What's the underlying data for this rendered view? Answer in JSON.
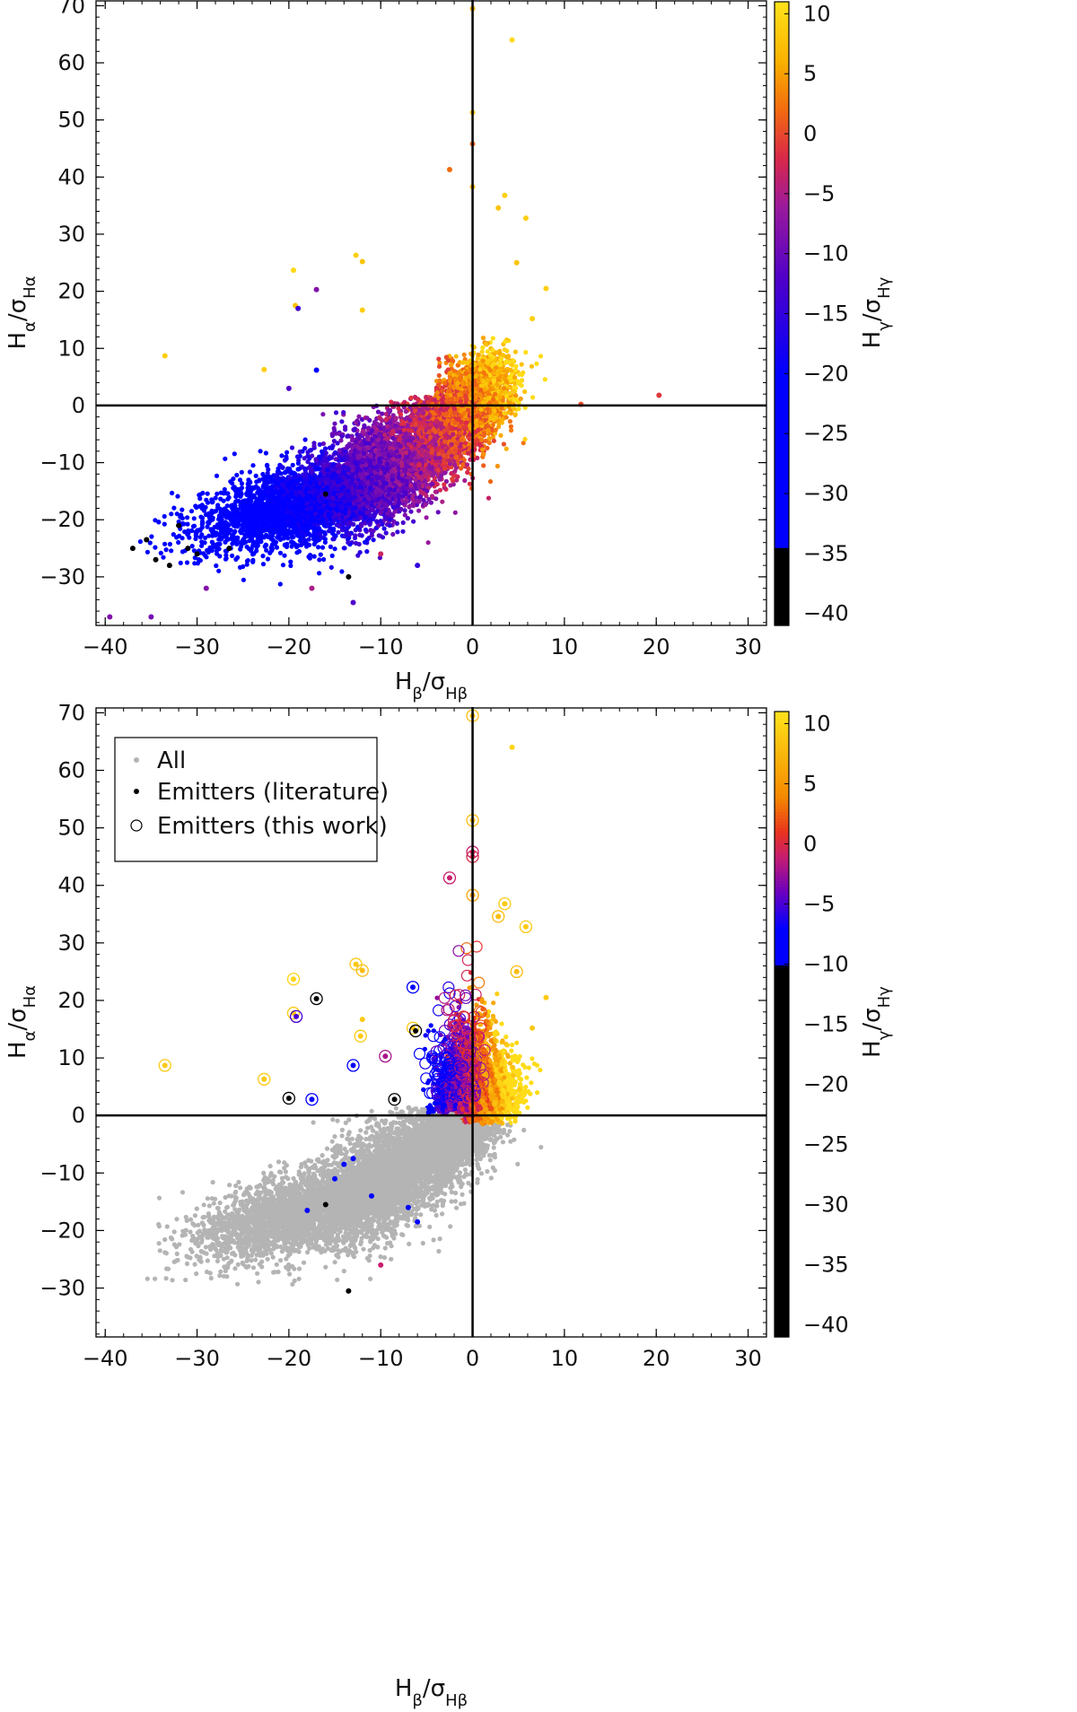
{
  "chart_data": [
    {
      "type": "scatter",
      "title": "",
      "xlabel": "H_β/σ_Hβ",
      "ylabel": "H_α/σ_Hα",
      "colorbar_label": "H_γ/σ_Hγ",
      "xlim": [
        -41,
        32
      ],
      "ylim": [
        -38.5,
        71
      ],
      "xticks": [
        "−40",
        "−30",
        "−20",
        "−10",
        "0",
        "10",
        "20",
        "30"
      ],
      "xtick_values": [
        -40,
        -30,
        -20,
        -10,
        0,
        10,
        20,
        30
      ],
      "yticks": [
        "−30",
        "−20",
        "−10",
        "0",
        "10",
        "20",
        "30",
        "40",
        "50",
        "60",
        "70"
      ],
      "ytick_values": [
        -30,
        -20,
        -10,
        0,
        10,
        20,
        30,
        40,
        50,
        60,
        70
      ],
      "colorbar": {
        "range": [
          -41,
          11
        ],
        "ticks": [
          "10",
          "5",
          "0",
          "−5",
          "−10",
          "−15",
          "−20",
          "−25",
          "−30",
          "−35",
          "−40"
        ],
        "tick_values": [
          10,
          5,
          0,
          -5,
          -10,
          -15,
          -20,
          -25,
          -30,
          -35,
          -40
        ],
        "stops": [
          {
            "value": -41,
            "color": "#000000"
          },
          {
            "value": -34.5,
            "color": "#000000"
          },
          {
            "value": -34.4,
            "color": "#0000ff"
          },
          {
            "value": -20,
            "color": "#0000ff"
          },
          {
            "value": -12,
            "color": "#5000c8"
          },
          {
            "value": -6,
            "color": "#9b1a9b"
          },
          {
            "value": -2,
            "color": "#d9284a"
          },
          {
            "value": 2,
            "color": "#f26a10"
          },
          {
            "value": 6,
            "color": "#f9b000"
          },
          {
            "value": 11,
            "color": "#ffe21a"
          }
        ]
      },
      "reference_lines": {
        "x": 0,
        "y": 0,
        "color": "#000000"
      },
      "points": [
        {
          "x": -39.5,
          "y": -37,
          "c": -8
        },
        {
          "x": -37,
          "y": -25,
          "c": -38
        },
        {
          "x": -35.5,
          "y": -23.5,
          "c": -37
        },
        {
          "x": -35,
          "y": -37,
          "c": -9
        },
        {
          "x": -34.5,
          "y": -27,
          "c": -36
        },
        {
          "x": -33.5,
          "y": 8.7,
          "c": 9
        },
        {
          "x": -33,
          "y": -28,
          "c": -37
        },
        {
          "x": -32,
          "y": -21,
          "c": -36
        },
        {
          "x": -31,
          "y": -25,
          "c": -38
        },
        {
          "x": -30,
          "y": -26,
          "c": -35
        },
        {
          "x": -29,
          "y": -32,
          "c": -8
        },
        {
          "x": -26.5,
          "y": -25,
          "c": -37
        },
        {
          "x": -22.7,
          "y": 6.3,
          "c": 9
        },
        {
          "x": -20,
          "y": 3,
          "c": -12
        },
        {
          "x": -19.5,
          "y": 23.7,
          "c": 10
        },
        {
          "x": -19.3,
          "y": 17.5,
          "c": 8
        },
        {
          "x": -19,
          "y": 17,
          "c": -14
        },
        {
          "x": -17.5,
          "y": -32,
          "c": -5
        },
        {
          "x": -17,
          "y": 20.3,
          "c": -8
        },
        {
          "x": -17,
          "y": 6.2,
          "c": -22
        },
        {
          "x": -16,
          "y": -15.5,
          "c": -38
        },
        {
          "x": -13.5,
          "y": -30,
          "c": -40
        },
        {
          "x": -13,
          "y": -34.5,
          "c": -12
        },
        {
          "x": -12.7,
          "y": 26.3,
          "c": 9
        },
        {
          "x": -12,
          "y": 25.2,
          "c": 8
        },
        {
          "x": -12,
          "y": 16.7,
          "c": 9
        },
        {
          "x": -10,
          "y": -26,
          "c": -3
        },
        {
          "x": -6,
          "y": -28,
          "c": -15
        },
        {
          "x": -2.5,
          "y": 41.3,
          "c": 2
        },
        {
          "x": 0,
          "y": 69.5,
          "c": 6
        },
        {
          "x": 0,
          "y": 51.3,
          "c": 8
        },
        {
          "x": 0,
          "y": 45.8,
          "c": 2
        },
        {
          "x": 0,
          "y": 38.3,
          "c": 7
        },
        {
          "x": 3.5,
          "y": 36.8,
          "c": 9
        },
        {
          "x": 4.3,
          "y": 64,
          "c": 10
        },
        {
          "x": 2.8,
          "y": 34.6,
          "c": 8
        },
        {
          "x": 5.8,
          "y": 32.8,
          "c": 9
        },
        {
          "x": 4.8,
          "y": 25,
          "c": 8
        },
        {
          "x": 8,
          "y": 20.5,
          "c": 9
        },
        {
          "x": 6.5,
          "y": 15.2,
          "c": 9
        },
        {
          "x": 11.8,
          "y": 0.2,
          "c": 0
        },
        {
          "x": 20.3,
          "y": 1.8,
          "c": -1
        }
      ]
    },
    {
      "type": "scatter",
      "title": "",
      "xlabel": "H_β/σ_Hβ",
      "ylabel": "H_α/σ_Hα",
      "colorbar_label": "H_γ/σ_Hγ",
      "xlim": [
        -41,
        32
      ],
      "ylim": [
        -38.5,
        71
      ],
      "xticks": [
        "−40",
        "−30",
        "−20",
        "−10",
        "0",
        "10",
        "20",
        "30"
      ],
      "xtick_values": [
        -40,
        -30,
        -20,
        -10,
        0,
        10,
        20,
        30
      ],
      "yticks": [
        "−30",
        "−20",
        "−10",
        "0",
        "10",
        "20",
        "30",
        "40",
        "50",
        "60",
        "70"
      ],
      "ytick_values": [
        -30,
        -20,
        -10,
        0,
        10,
        20,
        30,
        40,
        50,
        60,
        70
      ],
      "colorbar": {
        "range": [
          -41,
          11
        ],
        "ticks": [
          "10",
          "5",
          "0",
          "−5",
          "−10",
          "−15",
          "−20",
          "−25",
          "−30",
          "−35",
          "−40"
        ],
        "tick_values": [
          10,
          5,
          0,
          -5,
          -10,
          -15,
          -20,
          -25,
          -30,
          -35,
          -40
        ],
        "stops": [
          {
            "value": -41,
            "color": "#000000"
          },
          {
            "value": -10.2,
            "color": "#000000"
          },
          {
            "value": -10.1,
            "color": "#0000ff"
          },
          {
            "value": -7,
            "color": "#0000ff"
          },
          {
            "value": -4,
            "color": "#6a00c0"
          },
          {
            "value": -1,
            "color": "#c81e6e"
          },
          {
            "value": 1,
            "color": "#e8341e"
          },
          {
            "value": 4,
            "color": "#f58a00"
          },
          {
            "value": 11,
            "color": "#ffe21a"
          }
        ]
      },
      "legend": {
        "position": "top-left",
        "entries": [
          {
            "label": "All",
            "marker": "small-gray-dot"
          },
          {
            "label": "Emitters (literature)",
            "marker": "small-black-dot"
          },
          {
            "label": "Emitters (this work)",
            "marker": "open-circle"
          }
        ]
      },
      "reference_lines": {
        "x": 0,
        "y": 0,
        "color": "#000000"
      },
      "all_color": "#b4b4b4",
      "emitters": [
        {
          "x": -33.5,
          "y": 8.7,
          "c": 9,
          "ring": true
        },
        {
          "x": -22.7,
          "y": 6.3,
          "c": 9,
          "ring": true
        },
        {
          "x": -19.5,
          "y": 23.7,
          "c": 10,
          "ring": true
        },
        {
          "x": -19.5,
          "y": 17.8,
          "c": 9,
          "ring": true
        },
        {
          "x": -19.2,
          "y": 17.2,
          "c": -5,
          "ring": true
        },
        {
          "x": -20,
          "y": 3,
          "c": -20,
          "ring": true
        },
        {
          "x": -17.5,
          "y": 2.8,
          "c": -8,
          "ring": true
        },
        {
          "x": -17,
          "y": 20.3,
          "c": -25,
          "ring": true
        },
        {
          "x": -13,
          "y": 8.7,
          "c": -7,
          "ring": true
        },
        {
          "x": -12.7,
          "y": 26.3,
          "c": 9,
          "ring": true
        },
        {
          "x": -12,
          "y": 25.2,
          "c": 8,
          "ring": true
        },
        {
          "x": -12.2,
          "y": 13.8,
          "c": 9,
          "ring": true
        },
        {
          "x": -12,
          "y": 16.7,
          "c": 9,
          "ring": false
        },
        {
          "x": -8.5,
          "y": 2.8,
          "c": -30,
          "ring": true
        },
        {
          "x": -9.5,
          "y": 10.3,
          "c": -2,
          "ring": true
        },
        {
          "x": -6.5,
          "y": 15.2,
          "c": 9,
          "ring": true
        },
        {
          "x": -6.5,
          "y": 22.3,
          "c": -7,
          "ring": true
        },
        {
          "x": -6.2,
          "y": 14.7,
          "c": -25,
          "ring": true
        },
        {
          "x": -2.5,
          "y": 41.3,
          "c": -1,
          "ring": true
        },
        {
          "x": 0,
          "y": 69.5,
          "c": 8,
          "ring": true
        },
        {
          "x": 0,
          "y": 51.3,
          "c": 8,
          "ring": true
        },
        {
          "x": 0,
          "y": 45.8,
          "c": -1,
          "ring": true
        },
        {
          "x": 0,
          "y": 45,
          "c": 0,
          "ring": true
        },
        {
          "x": 0,
          "y": 38.3,
          "c": 6,
          "ring": true
        },
        {
          "x": 3.5,
          "y": 36.8,
          "c": 9,
          "ring": true
        },
        {
          "x": 4.3,
          "y": 64,
          "c": 10,
          "ring": false
        },
        {
          "x": 2.8,
          "y": 34.6,
          "c": 8,
          "ring": true
        },
        {
          "x": 5.8,
          "y": 32.8,
          "c": 9,
          "ring": true
        },
        {
          "x": 4.8,
          "y": 25,
          "c": 8,
          "ring": true
        },
        {
          "x": 8,
          "y": 20.5,
          "c": 9,
          "ring": false
        },
        {
          "x": 6.5,
          "y": 15.2,
          "c": 9,
          "ring": false
        },
        {
          "x": -16,
          "y": -15.5,
          "c": -35,
          "ring": false
        },
        {
          "x": -13.5,
          "y": -30.5,
          "c": -38,
          "ring": false
        },
        {
          "x": -10,
          "y": -26,
          "c": -1,
          "ring": false
        },
        {
          "x": -13,
          "y": -7.5,
          "c": -9,
          "ring": false
        },
        {
          "x": -14,
          "y": -8.5,
          "c": -9,
          "ring": false
        },
        {
          "x": -15,
          "y": -11,
          "c": -9,
          "ring": false
        },
        {
          "x": -18,
          "y": -16.5,
          "c": -9,
          "ring": false
        },
        {
          "x": -11,
          "y": -14,
          "c": -9,
          "ring": false
        },
        {
          "x": -7,
          "y": -16,
          "c": -9,
          "ring": false
        },
        {
          "x": -6,
          "y": -18.5,
          "c": -9,
          "ring": false
        }
      ]
    }
  ]
}
